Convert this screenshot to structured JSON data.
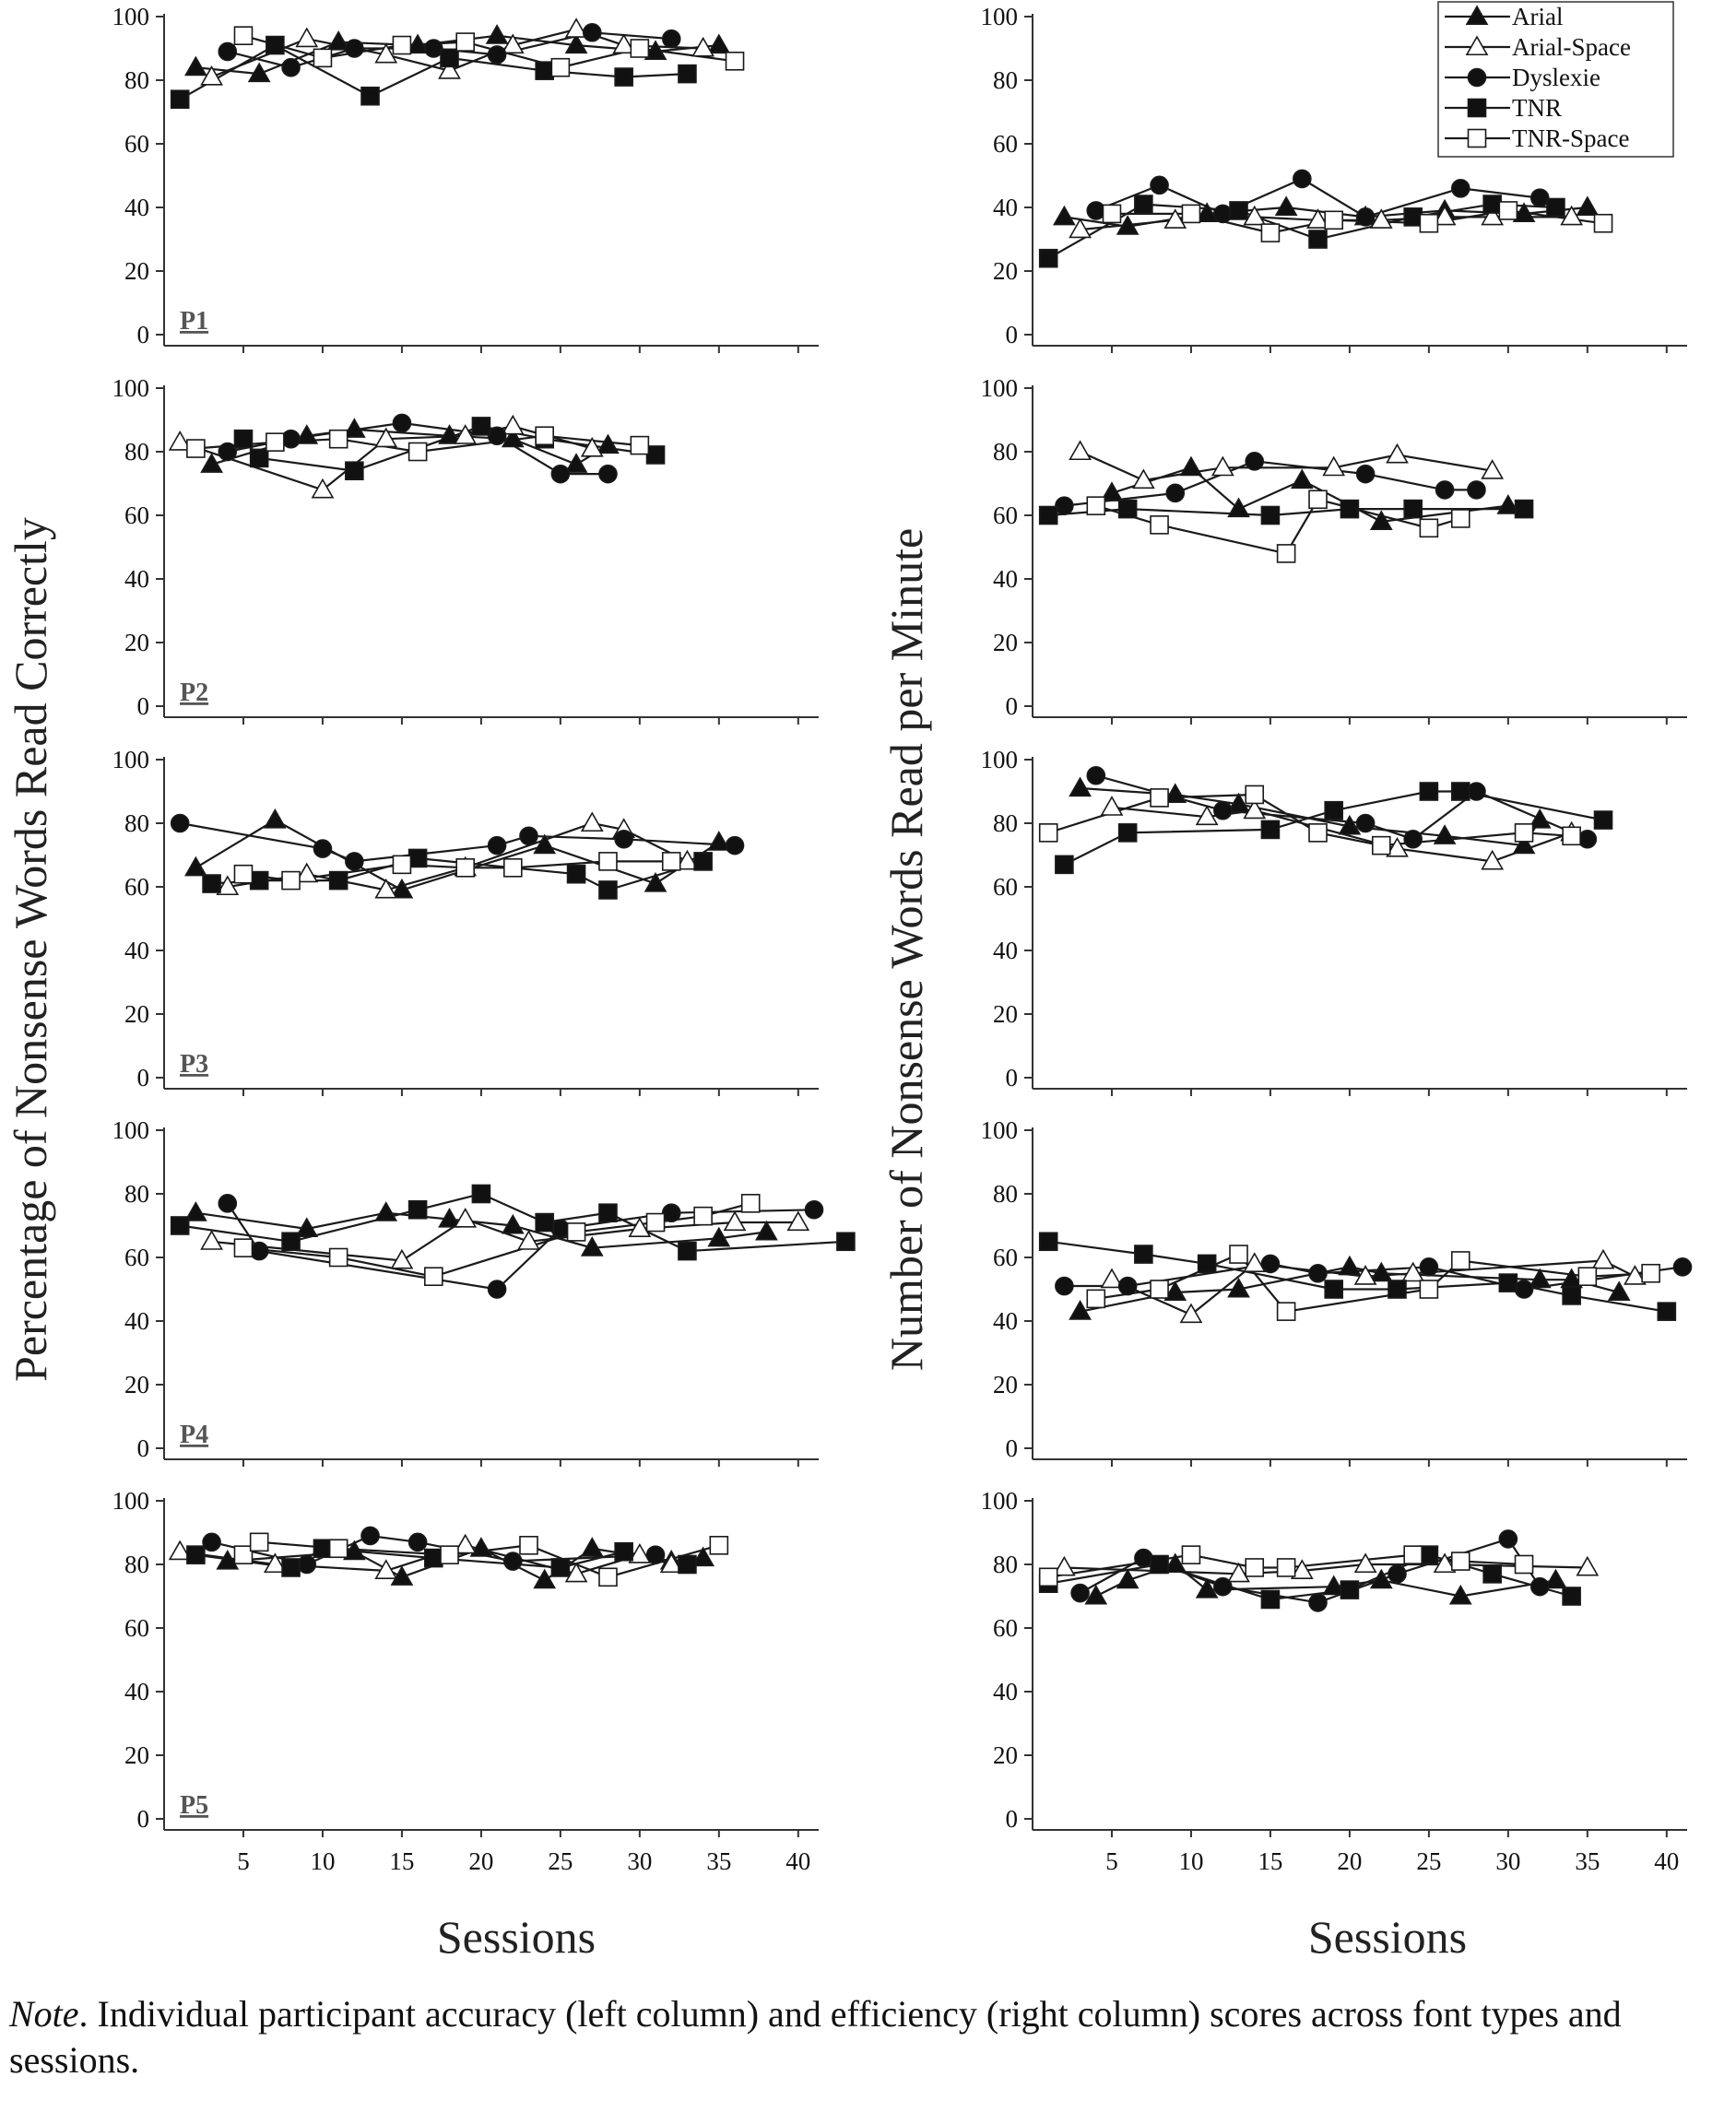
{
  "caption": {
    "note_label": "Note",
    "text": ". Individual participant accuracy (left column) and efficiency (right column) scores across font types and sessions."
  },
  "axes": {
    "left_ylabel": "Percentage of Nonsense Words Read Correctly",
    "right_ylabel": "Number of Nonsense Words Read per Minute",
    "xlabel": "Sessions",
    "x_ticks": [
      5,
      10,
      15,
      20,
      25,
      30,
      35,
      40
    ],
    "y_ticks": [
      0,
      20,
      40,
      60,
      80,
      100
    ]
  },
  "legend": [
    "Arial",
    "Arial-Space",
    "Dyslexie",
    "TNR",
    "TNR-Space"
  ],
  "colors": {
    "line": "#1a1a1a",
    "filled_marker": "#111111",
    "open_marker": "#ffffff"
  },
  "chart_data": [
    {
      "type": "line",
      "panel": "P1",
      "measure": "accuracy",
      "column": "left",
      "xlim": [
        0,
        41
      ],
      "ylim": [
        0,
        100
      ],
      "series": [
        {
          "name": "Arial",
          "marker": "triangle-filled",
          "x": [
            2,
            6,
            11,
            16,
            21,
            26,
            31,
            35
          ],
          "y": [
            84,
            82,
            92,
            91,
            94,
            91,
            89,
            91
          ]
        },
        {
          "name": "Arial-Space",
          "marker": "triangle-open",
          "x": [
            3,
            9,
            14,
            18,
            22,
            26,
            29,
            34
          ],
          "y": [
            81,
            93,
            88,
            83,
            91,
            96,
            91,
            90
          ]
        },
        {
          "name": "Dyslexie",
          "marker": "circle-filled",
          "x": [
            4,
            8,
            12,
            17,
            21,
            27,
            32
          ],
          "y": [
            89,
            84,
            90,
            90,
            88,
            95,
            93
          ]
        },
        {
          "name": "TNR",
          "marker": "square-filled",
          "x": [
            1,
            7,
            13,
            18,
            24,
            29,
            33
          ],
          "y": [
            74,
            91,
            75,
            87,
            83,
            81,
            82
          ]
        },
        {
          "name": "TNR-Space",
          "marker": "square-open",
          "x": [
            5,
            10,
            15,
            19,
            25,
            30,
            36
          ],
          "y": [
            94,
            87,
            91,
            92,
            84,
            90,
            86
          ]
        }
      ]
    },
    {
      "type": "line",
      "panel": "P1",
      "measure": "efficiency",
      "column": "right",
      "xlim": [
        0,
        41
      ],
      "ylim": [
        0,
        100
      ],
      "series": [
        {
          "name": "Arial",
          "x": [
            2,
            6,
            11,
            16,
            21,
            26,
            31,
            35
          ],
          "y": [
            37,
            34,
            38,
            40,
            37,
            39,
            38,
            40
          ]
        },
        {
          "name": "Arial-Space",
          "x": [
            3,
            9,
            14,
            18,
            22,
            26,
            29,
            34
          ],
          "y": [
            33,
            36,
            37,
            36,
            36,
            37,
            37,
            37
          ]
        },
        {
          "name": "Dyslexie",
          "x": [
            4,
            8,
            12,
            17,
            21,
            27,
            32
          ],
          "y": [
            39,
            47,
            38,
            49,
            37,
            46,
            43
          ]
        },
        {
          "name": "TNR",
          "x": [
            1,
            7,
            13,
            18,
            24,
            29,
            33
          ],
          "y": [
            24,
            41,
            39,
            30,
            37,
            41,
            40
          ]
        },
        {
          "name": "TNR-Space",
          "x": [
            5,
            10,
            15,
            19,
            25,
            30,
            36
          ],
          "y": [
            38,
            38,
            32,
            36,
            35,
            39,
            35
          ]
        }
      ]
    },
    {
      "type": "line",
      "panel": "P2",
      "measure": "accuracy",
      "column": "left",
      "xlim": [
        0,
        41
      ],
      "ylim": [
        0,
        100
      ],
      "series": [
        {
          "name": "Arial",
          "x": [
            3,
            9,
            12,
            18,
            22,
            26,
            28
          ],
          "y": [
            76,
            85,
            87,
            85,
            84,
            76,
            82
          ]
        },
        {
          "name": "Arial-Space",
          "x": [
            1,
            10,
            14,
            19,
            22,
            27
          ],
          "y": [
            83,
            68,
            84,
            85,
            88,
            81
          ]
        },
        {
          "name": "Dyslexie",
          "x": [
            4,
            8,
            15,
            21,
            25,
            28
          ],
          "y": [
            80,
            84,
            89,
            85,
            73,
            73
          ]
        },
        {
          "name": "TNR",
          "x": [
            5,
            6,
            12,
            20,
            24,
            31
          ],
          "y": [
            84,
            78,
            74,
            88,
            84,
            79
          ]
        },
        {
          "name": "TNR-Space",
          "x": [
            2,
            7,
            11,
            16,
            24,
            30
          ],
          "y": [
            81,
            83,
            84,
            80,
            85,
            82
          ]
        }
      ]
    },
    {
      "type": "line",
      "panel": "P2",
      "measure": "efficiency",
      "column": "right",
      "xlim": [
        0,
        41
      ],
      "ylim": [
        0,
        100
      ],
      "series": [
        {
          "name": "Arial",
          "x": [
            5,
            10,
            13,
            17,
            22,
            30
          ],
          "y": [
            67,
            75,
            62,
            71,
            58,
            63
          ]
        },
        {
          "name": "Arial-Space",
          "x": [
            3,
            7,
            12,
            19,
            23,
            29
          ],
          "y": [
            80,
            71,
            75,
            75,
            79,
            74
          ]
        },
        {
          "name": "Dyslexie",
          "x": [
            2,
            9,
            14,
            21,
            26,
            28
          ],
          "y": [
            63,
            67,
            77,
            73,
            68,
            68
          ]
        },
        {
          "name": "TNR",
          "x": [
            1,
            6,
            15,
            20,
            24,
            31
          ],
          "y": [
            60,
            62,
            60,
            62,
            62,
            62
          ]
        },
        {
          "name": "TNR-Space",
          "x": [
            4,
            8,
            16,
            18,
            25,
            27
          ],
          "y": [
            63,
            57,
            48,
            65,
            56,
            59
          ]
        }
      ]
    },
    {
      "type": "line",
      "panel": "P3",
      "measure": "accuracy",
      "column": "left",
      "xlim": [
        0,
        41
      ],
      "ylim": [
        0,
        100
      ],
      "series": [
        {
          "name": "Arial",
          "x": [
            2,
            7,
            15,
            24,
            31,
            35
          ],
          "y": [
            66,
            81,
            59,
            73,
            61,
            74
          ]
        },
        {
          "name": "Arial-Space",
          "x": [
            4,
            9,
            14,
            19,
            27,
            29,
            33
          ],
          "y": [
            60,
            64,
            59,
            66,
            80,
            78,
            68
          ]
        },
        {
          "name": "Dyslexie",
          "x": [
            1,
            10,
            12,
            21,
            23,
            29,
            36
          ],
          "y": [
            80,
            72,
            68,
            73,
            76,
            75,
            73
          ]
        },
        {
          "name": "TNR",
          "x": [
            3,
            6,
            11,
            16,
            26,
            28,
            34
          ],
          "y": [
            61,
            62,
            62,
            69,
            64,
            59,
            68
          ]
        },
        {
          "name": "TNR-Space",
          "x": [
            5,
            8,
            15,
            19,
            22,
            28,
            32
          ],
          "y": [
            64,
            62,
            67,
            66,
            66,
            68,
            68
          ]
        }
      ]
    },
    {
      "type": "line",
      "panel": "P3",
      "measure": "efficiency",
      "column": "right",
      "xlim": [
        0,
        41
      ],
      "ylim": [
        0,
        100
      ],
      "series": [
        {
          "name": "Arial",
          "x": [
            3,
            9,
            13,
            20,
            26,
            31,
            32
          ],
          "y": [
            91,
            89,
            86,
            79,
            76,
            73,
            81
          ]
        },
        {
          "name": "Arial-Space",
          "x": [
            5,
            11,
            14,
            23,
            29,
            34
          ],
          "y": [
            85,
            82,
            84,
            72,
            68,
            77
          ]
        },
        {
          "name": "Dyslexie",
          "x": [
            4,
            12,
            21,
            24,
            28,
            35
          ],
          "y": [
            95,
            84,
            80,
            75,
            90,
            75
          ]
        },
        {
          "name": "TNR",
          "x": [
            2,
            6,
            15,
            19,
            25,
            27,
            36
          ],
          "y": [
            67,
            77,
            78,
            84,
            90,
            90,
            81
          ]
        },
        {
          "name": "TNR-Space",
          "x": [
            1,
            8,
            14,
            18,
            22,
            31,
            34
          ],
          "y": [
            77,
            88,
            89,
            77,
            73,
            77,
            76
          ]
        }
      ]
    },
    {
      "type": "line",
      "panel": "P4",
      "measure": "accuracy",
      "column": "left",
      "xlim": [
        0,
        41
      ],
      "ylim": [
        0,
        100
      ],
      "series": [
        {
          "name": "Arial",
          "x": [
            2,
            9,
            14,
            18,
            22,
            27,
            35,
            38
          ],
          "y": [
            74,
            69,
            74,
            72,
            70,
            63,
            66,
            68
          ]
        },
        {
          "name": "Arial-Space",
          "x": [
            3,
            15,
            19,
            23,
            30,
            36,
            40
          ],
          "y": [
            65,
            59,
            72,
            65,
            69,
            71,
            71
          ]
        },
        {
          "name": "Dyslexie",
          "x": [
            4,
            6,
            21,
            25,
            32,
            41
          ],
          "y": [
            77,
            62,
            50,
            69,
            74,
            75
          ]
        },
        {
          "name": "TNR",
          "x": [
            1,
            8,
            16,
            20,
            24,
            28,
            33,
            43
          ],
          "y": [
            70,
            65,
            75,
            80,
            71,
            74,
            62,
            65
          ]
        },
        {
          "name": "TNR-Space",
          "x": [
            5,
            11,
            17,
            26,
            31,
            34,
            37
          ],
          "y": [
            63,
            60,
            54,
            68,
            71,
            73,
            77
          ]
        }
      ]
    },
    {
      "type": "line",
      "panel": "P4",
      "measure": "efficiency",
      "column": "right",
      "xlim": [
        0,
        41
      ],
      "ylim": [
        0,
        100
      ],
      "series": [
        {
          "name": "Arial",
          "x": [
            3,
            9,
            13,
            20,
            22,
            32,
            34,
            37
          ],
          "y": [
            43,
            49,
            50,
            57,
            55,
            53,
            53,
            49
          ]
        },
        {
          "name": "Arial-Space",
          "x": [
            5,
            10,
            14,
            21,
            24,
            36,
            38
          ],
          "y": [
            53,
            42,
            58,
            54,
            55,
            59,
            54
          ]
        },
        {
          "name": "Dyslexie",
          "x": [
            2,
            6,
            15,
            18,
            25,
            31,
            41
          ],
          "y": [
            51,
            51,
            58,
            55,
            57,
            50,
            57
          ]
        },
        {
          "name": "TNR",
          "x": [
            1,
            7,
            11,
            19,
            23,
            30,
            34,
            40
          ],
          "y": [
            65,
            61,
            58,
            50,
            50,
            52,
            48,
            43
          ]
        },
        {
          "name": "TNR-Space",
          "x": [
            4,
            8,
            13,
            16,
            25,
            27,
            35,
            39
          ],
          "y": [
            47,
            50,
            61,
            43,
            50,
            59,
            54,
            55
          ]
        }
      ]
    },
    {
      "type": "line",
      "panel": "P5",
      "measure": "accuracy",
      "column": "left",
      "xlim": [
        0,
        41
      ],
      "ylim": [
        0,
        100
      ],
      "series": [
        {
          "name": "Arial",
          "x": [
            4,
            12,
            15,
            20,
            24,
            27,
            32,
            34
          ],
          "y": [
            81,
            84,
            76,
            85,
            75,
            85,
            81,
            82
          ]
        },
        {
          "name": "Arial-Space",
          "x": [
            1,
            7,
            14,
            19,
            26,
            30,
            32
          ],
          "y": [
            84,
            80,
            78,
            86,
            77,
            83,
            80
          ]
        },
        {
          "name": "Dyslexie",
          "x": [
            3,
            9,
            13,
            16,
            22,
            31
          ],
          "y": [
            87,
            80,
            89,
            87,
            81,
            83
          ]
        },
        {
          "name": "TNR",
          "x": [
            2,
            8,
            10,
            17,
            25,
            29,
            33
          ],
          "y": [
            83,
            79,
            85,
            82,
            79,
            84,
            80
          ]
        },
        {
          "name": "TNR-Space",
          "x": [
            5,
            6,
            11,
            18,
            23,
            28,
            35
          ],
          "y": [
            83,
            87,
            85,
            83,
            86,
            76,
            86
          ]
        }
      ]
    },
    {
      "type": "line",
      "panel": "P5",
      "measure": "efficiency",
      "column": "right",
      "xlim": [
        0,
        41
      ],
      "ylim": [
        0,
        100
      ],
      "series": [
        {
          "name": "Arial",
          "x": [
            4,
            6,
            9,
            11,
            19,
            22,
            27,
            33
          ],
          "y": [
            70,
            75,
            80,
            72,
            73,
            75,
            70,
            75
          ]
        },
        {
          "name": "Arial-Space",
          "x": [
            2,
            13,
            17,
            21,
            26,
            35
          ],
          "y": [
            79,
            77,
            78,
            80,
            80,
            79
          ]
        },
        {
          "name": "Dyslexie",
          "x": [
            3,
            7,
            12,
            18,
            23,
            30,
            32
          ],
          "y": [
            71,
            82,
            73,
            68,
            77,
            88,
            73
          ]
        },
        {
          "name": "TNR",
          "x": [
            1,
            8,
            15,
            20,
            25,
            29,
            34
          ],
          "y": [
            74,
            80,
            69,
            72,
            83,
            77,
            70
          ]
        },
        {
          "name": "TNR-Space",
          "x": [
            1,
            10,
            14,
            16,
            24,
            27,
            31
          ],
          "y": [
            76,
            83,
            79,
            79,
            83,
            81,
            80
          ]
        }
      ]
    }
  ]
}
